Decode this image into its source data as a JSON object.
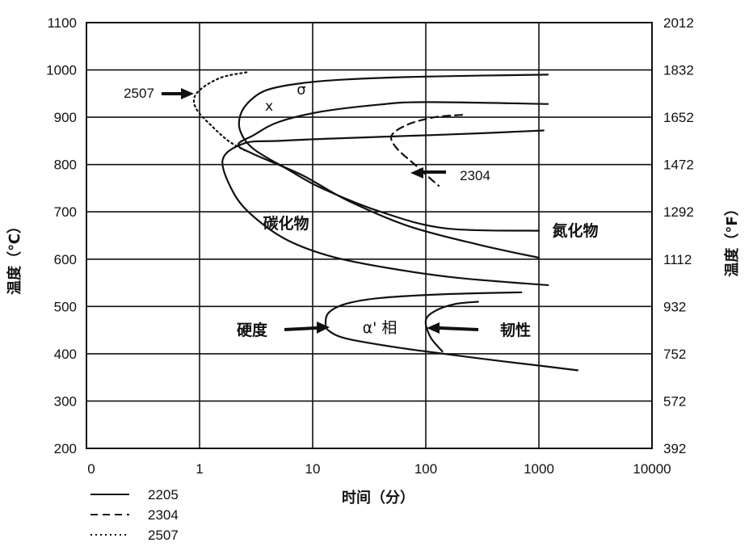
{
  "chart_data": {
    "type": "line",
    "xlabel": "时间（分）",
    "ylabel_left": "温度（℃）",
    "ylabel_right": "温度（°F）",
    "x_scale": "log",
    "x_ticks": [
      "0",
      "1",
      "10",
      "100",
      "1000",
      "10000"
    ],
    "y_ticks": [
      200,
      300,
      400,
      500,
      600,
      700,
      800,
      900,
      1000,
      1100
    ],
    "y_ticks_right": [
      392,
      572,
      752,
      932,
      1112,
      1292,
      1472,
      1652,
      1832,
      2012
    ],
    "ylim": [
      200,
      1100
    ],
    "grid": true,
    "legend_position": "bottom-left",
    "legend": [
      {
        "label": "2205",
        "style": "solid"
      },
      {
        "label": "2304",
        "style": "dashed"
      },
      {
        "label": "2507",
        "style": "dotted"
      }
    ],
    "annotations": {
      "sigma": "σ",
      "x_mark": "x",
      "carbide": "碳化物",
      "nitride": "氮化物",
      "alpha_prime": "α' 相",
      "hardness": "硬度",
      "toughness": "韧性",
      "label_2304": "2304",
      "label_2507": "2507"
    },
    "series": [
      {
        "name": "2205",
        "style": "solid",
        "curves": [
          {
            "points": [
              [
                1200,
                990
              ],
              [
                100,
                986
              ],
              [
                20,
                980
              ],
              [
                8,
                972
              ],
              [
                4,
                958
              ],
              [
                2.8,
                935
              ],
              [
                2.3,
                905
              ],
              [
                2.3,
                870
              ],
              [
                3,
                833
              ],
              [
                6,
                790
              ],
              [
                12,
                750
              ],
              [
                40,
                700
              ],
              [
                150,
                665
              ],
              [
                1000,
                660
              ]
            ]
          },
          {
            "points": [
              [
                1200,
                928
              ],
              [
                100,
                932
              ],
              [
                40,
                927
              ],
              [
                12,
                912
              ],
              [
                5,
                890
              ],
              [
                3,
                862
              ],
              [
                2.2,
                842
              ],
              [
                3,
                822
              ],
              [
                8,
                778
              ],
              [
                20,
                725
              ],
              [
                70,
                670
              ],
              [
                300,
                630
              ],
              [
                1000,
                603
              ]
            ]
          },
          {
            "points": [
              [
                1100,
                872
              ],
              [
                300,
                866
              ],
              [
                60,
                860
              ],
              [
                15,
                855
              ],
              [
                5,
                850
              ],
              [
                2.5,
                845
              ],
              [
                1.6,
                810
              ],
              [
                2,
                740
              ],
              [
                3,
                690
              ],
              [
                6,
                640
              ],
              [
                15,
                605
              ],
              [
                50,
                580
              ],
              [
                200,
                560
              ],
              [
                1200,
                545
              ]
            ]
          },
          {
            "points": [
              [
                700,
                530
              ],
              [
                150,
                526
              ],
              [
                40,
                518
              ],
              [
                20,
                506
              ],
              [
                14,
                488
              ],
              [
                13,
                465
              ],
              [
                14,
                448
              ],
              [
                20,
                432
              ],
              [
                50,
                415
              ],
              [
                100,
                405
              ],
              [
                300,
                390
              ],
              [
                1000,
                375
              ],
              [
                2200,
                365
              ]
            ]
          },
          {
            "points": [
              [
                290,
                510
              ],
              [
                180,
                505
              ],
              [
                120,
                490
              ],
              [
                100,
                470
              ],
              [
                110,
                435
              ],
              [
                140,
                405
              ]
            ]
          }
        ]
      },
      {
        "name": "2304",
        "style": "dashed",
        "curves": [
          {
            "points": [
              [
                210,
                905
              ],
              [
                120,
                900
              ],
              [
                70,
                885
              ],
              [
                50,
                862
              ],
              [
                55,
                835
              ],
              [
                80,
                800
              ],
              [
                110,
                770
              ],
              [
                130,
                755
              ]
            ]
          }
        ]
      },
      {
        "name": "2507",
        "style": "dotted",
        "curves": [
          {
            "points": [
              [
                2.6,
                995
              ],
              [
                1.6,
                985
              ],
              [
                1.1,
                965
              ],
              [
                0.9,
                942
              ],
              [
                0.95,
                915
              ],
              [
                1.3,
                880
              ],
              [
                1.8,
                850
              ],
              [
                2.5,
                830
              ]
            ]
          }
        ]
      }
    ]
  }
}
